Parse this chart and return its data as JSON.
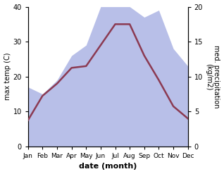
{
  "months": [
    "Jan",
    "Feb",
    "Mar",
    "Apr",
    "May",
    "Jun",
    "Jul",
    "Aug",
    "Sep",
    "Oct",
    "Nov",
    "Dec"
  ],
  "month_positions": [
    0,
    1,
    2,
    3,
    4,
    5,
    6,
    7,
    8,
    9,
    10,
    11
  ],
  "temp": [
    7.5,
    14.5,
    18.0,
    22.5,
    23.0,
    29.0,
    35.0,
    35.0,
    26.0,
    19.0,
    11.5,
    8.0
  ],
  "precip": [
    8.5,
    7.5,
    9.5,
    13.0,
    14.5,
    20.0,
    20.0,
    20.0,
    18.5,
    19.5,
    14.0,
    11.5
  ],
  "temp_color": "#8B3A52",
  "precip_fill_color": "#b8bfe8",
  "xlabel": "date (month)",
  "ylabel_left": "max temp (C)",
  "ylabel_right": "med. precipitation\n(kg/m2)",
  "ylim_left": [
    0,
    40
  ],
  "ylim_right": [
    0,
    20
  ],
  "yticks_left": [
    0,
    10,
    20,
    30,
    40
  ],
  "yticks_right": [
    0,
    5,
    10,
    15,
    20
  ],
  "bg_color": "#ffffff"
}
